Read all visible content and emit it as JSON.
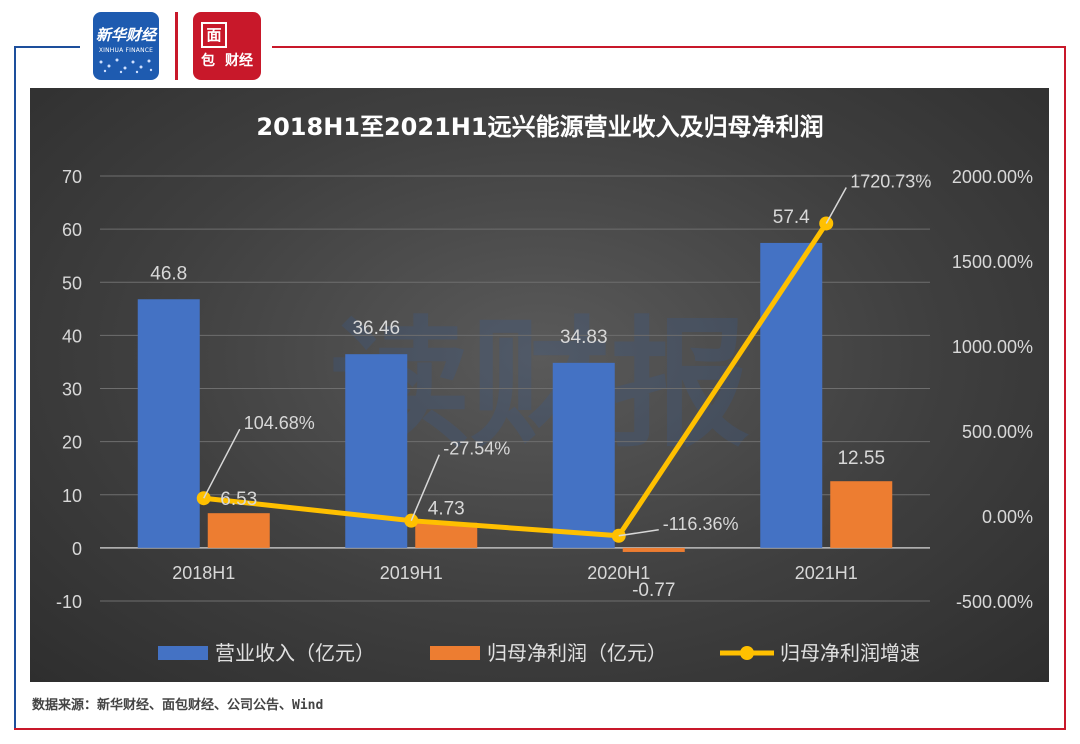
{
  "logos": {
    "xinhua_cn": "新华财经",
    "xinhua_en": "XINHUA FINANCE",
    "mianbao_1": "面",
    "mianbao_2": "包",
    "mianbao_3": "财经"
  },
  "watermark": "读财报",
  "source_text": "数据来源：新华财经、面包财经、公司公告、Wind",
  "colors": {
    "revenue": "#4472c4",
    "profit": "#ed7d31",
    "growth": "#ffc000",
    "frame_red": "#c8182a",
    "frame_blue": "#1d4f9c"
  },
  "chart_data": {
    "type": "bar",
    "title": "2018H1至2021H1远兴能源营业收入及归母净利润",
    "categories": [
      "2018H1",
      "2019H1",
      "2020H1",
      "2021H1"
    ],
    "series": [
      {
        "name": "营业收入（亿元）",
        "kind": "bar",
        "axis": "left",
        "values": [
          46.8,
          36.46,
          34.83,
          57.4
        ],
        "labels": [
          "46.8",
          "36.46",
          "34.83",
          "57.4"
        ]
      },
      {
        "name": "归母净利润（亿元）",
        "kind": "bar",
        "axis": "left",
        "values": [
          6.53,
          4.73,
          -0.77,
          12.55
        ],
        "labels": [
          "6.53",
          "4.73",
          "-0.77",
          "12.55"
        ]
      },
      {
        "name": "归母净利润增速",
        "kind": "line",
        "axis": "right",
        "values": [
          104.68,
          -27.54,
          -116.36,
          1720.73
        ],
        "labels": [
          "104.68%",
          "-27.54%",
          "-116.36%",
          "1720.73%"
        ]
      }
    ],
    "left_axis": {
      "ylim": [
        -10,
        70
      ],
      "ticks": [
        "-10",
        "0",
        "10",
        "20",
        "30",
        "40",
        "50",
        "60",
        "70"
      ]
    },
    "right_axis": {
      "ylim": [
        -500,
        2000
      ],
      "ticks": [
        "-500.00%",
        "0.00%",
        "500.00%",
        "1000.00%",
        "1500.00%",
        "2000.00%"
      ]
    },
    "grid": true,
    "legend_position": "bottom"
  }
}
